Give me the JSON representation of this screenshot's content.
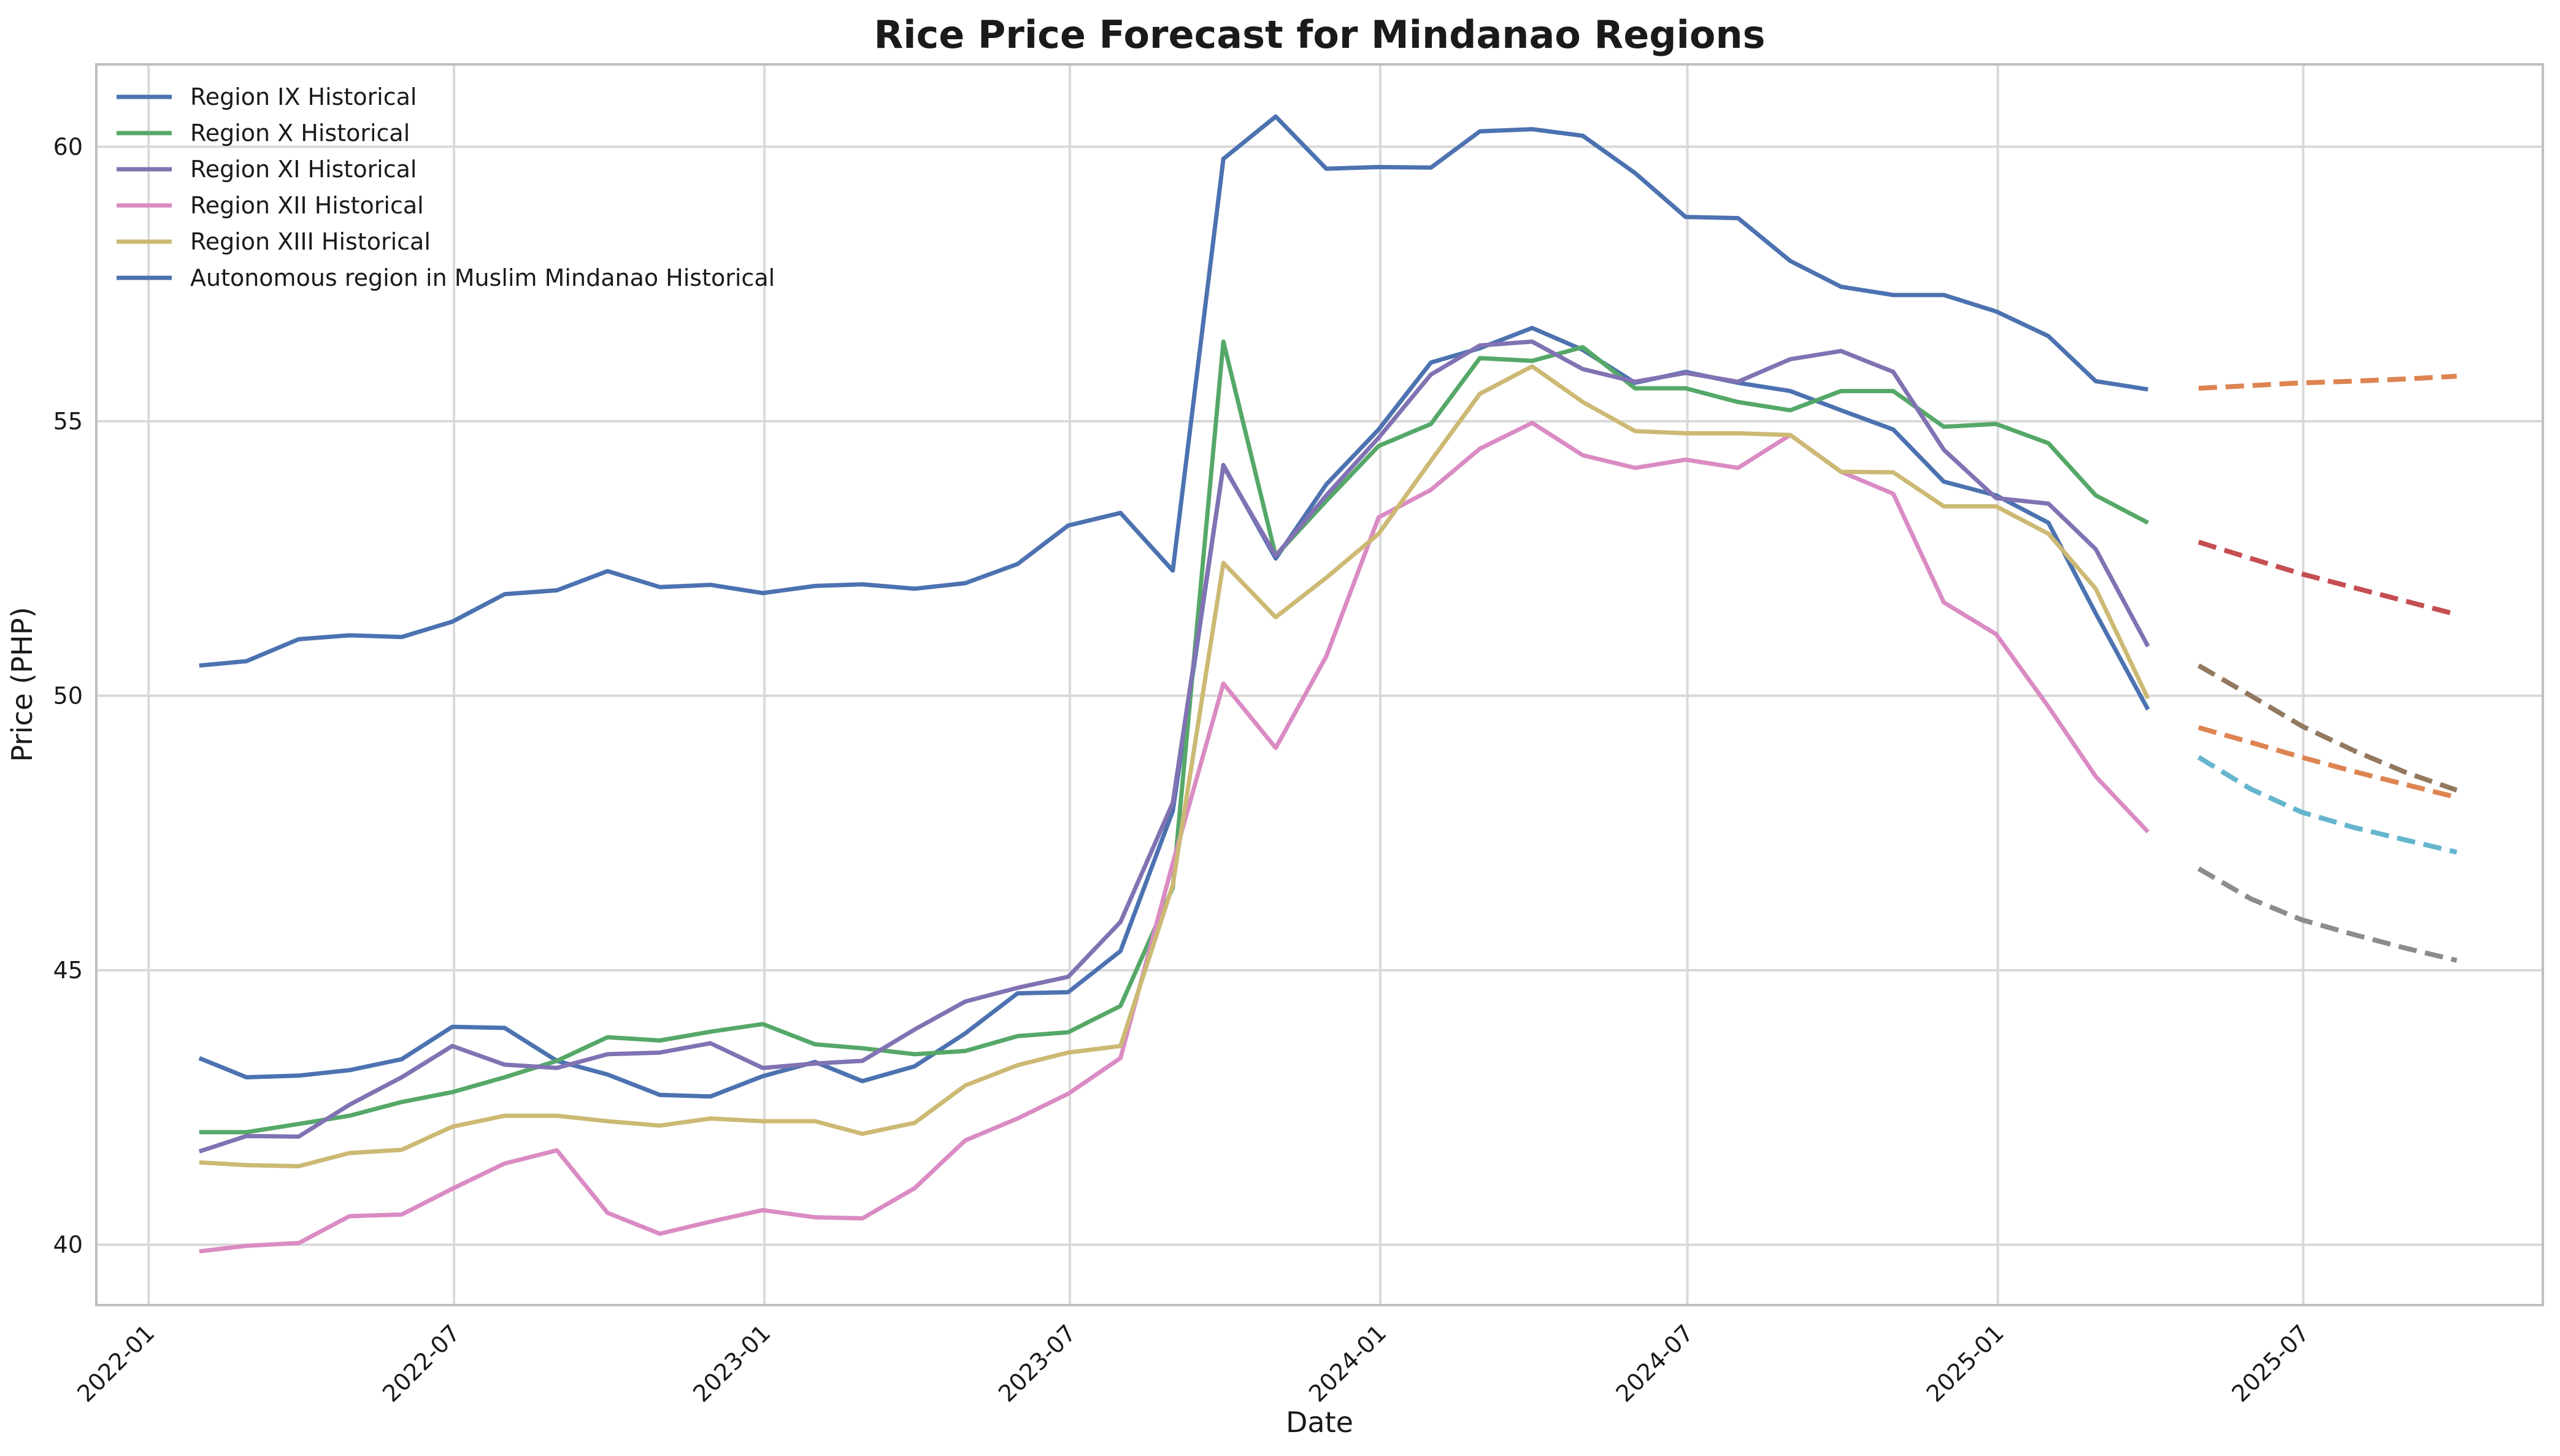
{
  "chart_data": {
    "type": "line",
    "title": "Rice Price Forecast for Mindanao Regions",
    "xlabel": "Date",
    "ylabel": "Price (PHP)",
    "xlim": [
      "2021-12-01",
      "2025-11-20"
    ],
    "ylim": [
      38.9,
      61.5
    ],
    "x_ticks": [
      "2022-01",
      "2022-07",
      "2023-01",
      "2023-07",
      "2024-01",
      "2024-07",
      "2025-01",
      "2025-07"
    ],
    "y_ticks": [
      40,
      45,
      50,
      55,
      60
    ],
    "grid": true,
    "legend_position": "upper-left",
    "historical_dates": [
      "2022-01-31",
      "2022-02-28",
      "2022-03-31",
      "2022-04-30",
      "2022-05-31",
      "2022-06-30",
      "2022-07-31",
      "2022-08-31",
      "2022-09-30",
      "2022-10-31",
      "2022-11-30",
      "2022-12-31",
      "2023-01-31",
      "2023-02-28",
      "2023-03-31",
      "2023-04-30",
      "2023-05-31",
      "2023-06-30",
      "2023-07-31",
      "2023-08-31",
      "2023-09-30",
      "2023-10-31",
      "2023-11-30",
      "2023-12-31",
      "2024-01-31",
      "2024-02-29",
      "2024-03-31",
      "2024-04-30",
      "2024-05-31",
      "2024-06-30",
      "2024-07-31",
      "2024-08-31",
      "2024-09-30",
      "2024-10-31",
      "2024-11-30",
      "2024-12-31",
      "2025-01-31",
      "2025-02-28",
      "2025-03-31"
    ],
    "forecast_dates": [
      "2025-04-30",
      "2025-05-31",
      "2025-06-30",
      "2025-07-31",
      "2025-08-31",
      "2025-09-30"
    ],
    "series": [
      {
        "name": "Region IX Historical",
        "color": "#4c72b0",
        "style": "solid",
        "values": [
          43.4,
          43.05,
          43.08,
          43.18,
          43.38,
          43.97,
          43.95,
          43.35,
          43.1,
          42.73,
          42.7,
          43.07,
          43.33,
          42.98,
          43.25,
          43.85,
          44.58,
          44.6,
          45.35,
          47.9,
          54.2,
          52.5,
          53.85,
          54.85,
          56.07,
          56.33,
          56.7,
          56.3,
          55.7,
          55.9,
          55.7,
          55.55,
          55.2,
          54.85,
          53.9,
          53.65,
          53.15,
          51.5,
          49.75
        ]
      },
      {
        "name": "Region X Historical",
        "color": "#55a868",
        "style": "solid",
        "values": [
          42.05,
          42.05,
          42.2,
          42.35,
          42.6,
          42.78,
          43.05,
          43.35,
          43.78,
          43.72,
          43.88,
          44.02,
          43.65,
          43.58,
          43.47,
          43.53,
          43.8,
          43.87,
          44.35,
          46.5,
          56.45,
          52.55,
          53.55,
          54.55,
          54.95,
          56.15,
          56.1,
          56.35,
          55.6,
          55.6,
          55.35,
          55.2,
          55.55,
          55.55,
          54.9,
          54.95,
          54.6,
          53.65,
          53.15
        ]
      },
      {
        "name": "Region XI Historical",
        "color": "#8172b3",
        "style": "solid",
        "values": [
          41.7,
          41.98,
          41.97,
          42.55,
          43.05,
          43.62,
          43.28,
          43.22,
          43.47,
          43.5,
          43.67,
          43.22,
          43.3,
          43.35,
          43.92,
          44.43,
          44.68,
          44.88,
          45.88,
          48.05,
          54.18,
          52.55,
          53.65,
          54.7,
          55.85,
          56.38,
          56.45,
          55.95,
          55.72,
          55.88,
          55.72,
          56.13,
          56.28,
          55.9,
          54.48,
          53.6,
          53.5,
          52.67,
          50.9
        ]
      },
      {
        "name": "Region XII Historical",
        "color": "#da8bc3",
        "style": "solid",
        "values": [
          39.88,
          39.98,
          40.03,
          40.52,
          40.55,
          41.02,
          41.48,
          41.72,
          40.58,
          40.2,
          40.42,
          40.63,
          40.5,
          40.48,
          41.03,
          41.9,
          42.3,
          42.75,
          43.4,
          46.95,
          50.22,
          49.05,
          50.72,
          53.25,
          53.75,
          54.5,
          54.97,
          54.38,
          54.15,
          54.3,
          54.15,
          54.75,
          54.08,
          53.68,
          51.7,
          51.12,
          49.8,
          48.53,
          47.52
        ]
      },
      {
        "name": "Region XIII Historical",
        "color": "#ccb974",
        "style": "solid",
        "values": [
          41.5,
          41.45,
          41.43,
          41.67,
          41.73,
          42.15,
          42.35,
          42.35,
          42.25,
          42.17,
          42.3,
          42.25,
          42.25,
          42.02,
          42.22,
          42.9,
          43.27,
          43.5,
          43.62,
          46.55,
          52.42,
          51.43,
          52.15,
          52.95,
          54.28,
          55.5,
          56.0,
          55.35,
          54.82,
          54.78,
          54.78,
          54.75,
          54.08,
          54.07,
          53.45,
          53.45,
          52.95,
          51.95,
          49.95
        ]
      },
      {
        "name": "Autonomous region in Muslim Mindanao Historical",
        "color": "#4c72b0",
        "style": "solid",
        "values": [
          50.55,
          50.63,
          51.03,
          51.1,
          51.07,
          51.35,
          51.85,
          51.92,
          52.27,
          51.98,
          52.02,
          51.87,
          52.0,
          52.03,
          51.95,
          52.05,
          52.4,
          53.1,
          53.33,
          52.28,
          59.78,
          60.55,
          59.6,
          59.63,
          59.62,
          60.28,
          60.32,
          60.2,
          59.52,
          58.72,
          58.7,
          57.92,
          57.45,
          57.3,
          57.3,
          57.0,
          56.55,
          55.73,
          55.58
        ]
      },
      {
        "color": "#dd8452",
        "style": "dashed",
        "forecast": true,
        "values": [
          55.6,
          55.65,
          55.7,
          55.73,
          55.77,
          55.82
        ]
      },
      {
        "color": "#c44e52",
        "style": "dashed",
        "forecast": true,
        "values": [
          52.8,
          52.5,
          52.22,
          51.97,
          51.72,
          51.48
        ]
      },
      {
        "color": "#937860",
        "style": "dashed",
        "forecast": true,
        "values": [
          50.55,
          50.0,
          49.45,
          49.0,
          48.6,
          48.28
        ]
      },
      {
        "color": "#dd8452",
        "style": "dashed",
        "forecast": true,
        "values": [
          49.42,
          49.15,
          48.88,
          48.62,
          48.38,
          48.15
        ]
      },
      {
        "color": "#64b5cd",
        "style": "dashed",
        "forecast": true,
        "values": [
          48.88,
          48.3,
          47.88,
          47.6,
          47.37,
          47.15
        ]
      },
      {
        "color": "#8c8c8c",
        "style": "dashed",
        "forecast": true,
        "values": [
          46.85,
          46.3,
          45.92,
          45.65,
          45.4,
          45.18
        ]
      }
    ]
  }
}
